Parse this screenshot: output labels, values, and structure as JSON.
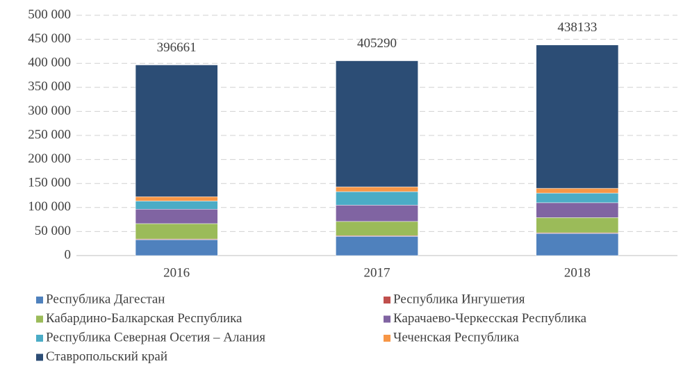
{
  "chart_data": {
    "type": "stacked_bar",
    "categories": [
      "2016",
      "2017",
      "2018"
    ],
    "series": [
      {
        "name": "Республика Дагестан",
        "color": "#4f81bd",
        "values": [
          33000,
          40000,
          46000
        ]
      },
      {
        "name": "Республика Ингушетия",
        "color": "#c0504d",
        "values": [
          1500,
          1500,
          1500
        ]
      },
      {
        "name": "Кабардино-Балкарская Республика",
        "color": "#9bbb59",
        "values": [
          32000,
          29500,
          31500
        ]
      },
      {
        "name": "Карачаево-Черкесская Республика",
        "color": "#8064a2",
        "values": [
          30000,
          34000,
          31000
        ]
      },
      {
        "name": "Республика Северная Осетия – Алания",
        "color": "#4bacc6",
        "values": [
          17000,
          28000,
          20000
        ]
      },
      {
        "name": "Чеченская Республика",
        "color": "#f79646",
        "values": [
          9000,
          10000,
          10000
        ]
      },
      {
        "name": "Ставропольский край",
        "color": "#2c4d75",
        "values": [
          274161,
          262290,
          298133
        ]
      }
    ],
    "totals": [
      396661,
      405290,
      438133
    ],
    "ylim": [
      0,
      500000
    ],
    "yticks": [
      0,
      {
        "value": 50000,
        "label": "50 000"
      },
      {
        "value": 100000,
        "label": "100 000"
      },
      {
        "value": 150000,
        "label": "150 000"
      },
      {
        "value": 200000,
        "label": "200 000"
      },
      {
        "value": 250000,
        "label": "250 000"
      },
      {
        "value": 300000,
        "label": "300 000"
      },
      {
        "value": 350000,
        "label": "350 000"
      },
      {
        "value": 400000,
        "label": "400 000"
      },
      {
        "value": 450000,
        "label": "450 000"
      },
      {
        "value": 500000,
        "label": "500 000"
      }
    ],
    "grid": true
  }
}
